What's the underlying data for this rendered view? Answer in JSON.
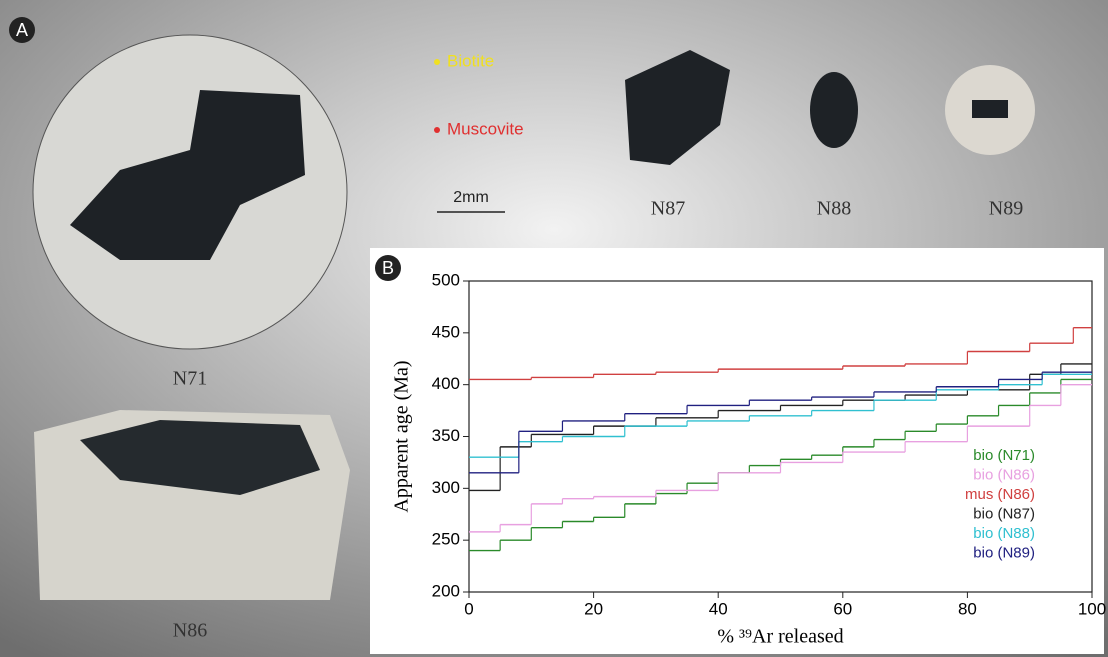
{
  "panel_a": {
    "label": "A",
    "legend": [
      "Biotite",
      "Muscovite"
    ],
    "scale": "2mm",
    "samples": [
      "N71",
      "N86",
      "N87",
      "N88",
      "N89"
    ]
  },
  "panel_b_label": "B",
  "chart_data": {
    "type": "step",
    "x_label": "% ³⁹Ar released",
    "y_label": "Apparent age (Ma)",
    "xlim": [
      0,
      100
    ],
    "xticks": [
      0,
      20,
      40,
      60,
      80,
      100
    ],
    "ylim": [
      200,
      500
    ],
    "yticks": [
      200,
      250,
      300,
      350,
      400,
      450,
      500
    ],
    "series": [
      {
        "name": "bio (N71)",
        "color": "#2a8a2a",
        "x": [
          0,
          5,
          10,
          15,
          20,
          25,
          30,
          35,
          40,
          45,
          50,
          55,
          60,
          65,
          70,
          75,
          80,
          85,
          90,
          95
        ],
        "values": [
          240,
          250,
          262,
          268,
          272,
          285,
          295,
          305,
          315,
          322,
          328,
          332,
          340,
          347,
          355,
          362,
          370,
          380,
          392,
          405
        ]
      },
      {
        "name": "bio (N86)",
        "color": "#e8a0e0",
        "x": [
          0,
          5,
          10,
          15,
          20,
          30,
          40,
          50,
          60,
          70,
          80,
          90,
          95
        ],
        "values": [
          258,
          265,
          285,
          290,
          292,
          298,
          315,
          325,
          335,
          345,
          360,
          380,
          400
        ]
      },
      {
        "name": "mus (N86)",
        "color": "#d04040",
        "x": [
          0,
          10,
          20,
          30,
          40,
          60,
          70,
          80,
          90,
          97
        ],
        "values": [
          405,
          407,
          410,
          412,
          415,
          418,
          420,
          432,
          440,
          455
        ]
      },
      {
        "name": "bio (N87)",
        "color": "#222222",
        "x": [
          0,
          5,
          10,
          20,
          30,
          40,
          50,
          60,
          70,
          80,
          90,
          95
        ],
        "values": [
          298,
          340,
          352,
          360,
          368,
          375,
          380,
          385,
          390,
          395,
          410,
          420
        ]
      },
      {
        "name": "bio (N88)",
        "color": "#30c0d0",
        "x": [
          0,
          8,
          15,
          25,
          35,
          45,
          55,
          65,
          75,
          85,
          92
        ],
        "values": [
          330,
          345,
          350,
          360,
          365,
          370,
          375,
          385,
          395,
          400,
          410
        ]
      },
      {
        "name": "bio (N89)",
        "color": "#202080",
        "x": [
          0,
          8,
          15,
          25,
          35,
          45,
          55,
          65,
          75,
          85,
          92
        ],
        "values": [
          315,
          355,
          365,
          372,
          380,
          385,
          388,
          393,
          398,
          405,
          412
        ]
      }
    ]
  }
}
